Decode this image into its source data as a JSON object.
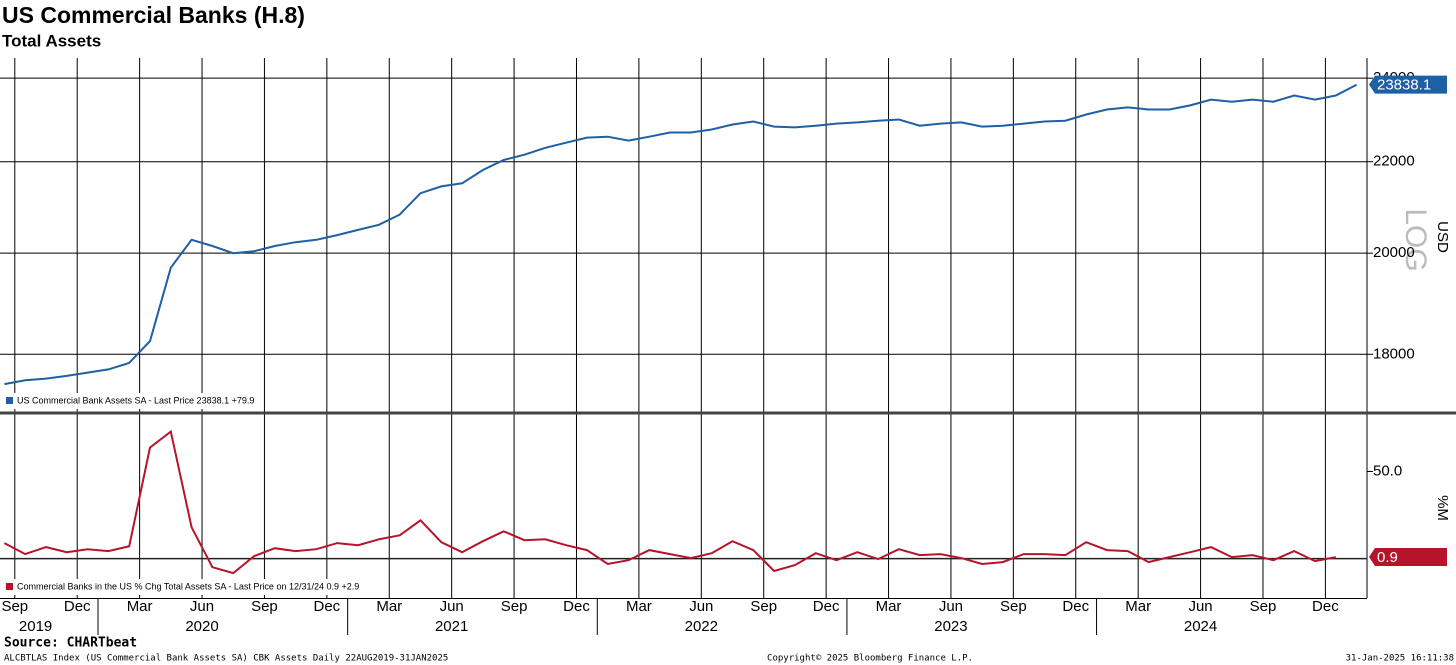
{
  "chart_data": [
    {
      "type": "line",
      "title": "US Commercial Banks (H.8)",
      "subtitle": "Total Assets",
      "log_scale": true,
      "scale_label": "LOG",
      "ylabel": "USD",
      "grid": true,
      "xlim": [
        "2019-08",
        "2025-02"
      ],
      "x": [
        "2019-08",
        "2019-09",
        "2019-10",
        "2019-11",
        "2019-12",
        "2020-01",
        "2020-02",
        "2020-03",
        "2020-04",
        "2020-05",
        "2020-06",
        "2020-07",
        "2020-08",
        "2020-09",
        "2020-10",
        "2020-11",
        "2020-12",
        "2021-01",
        "2021-02",
        "2021-03",
        "2021-04",
        "2021-05",
        "2021-06",
        "2021-07",
        "2021-08",
        "2021-09",
        "2021-10",
        "2021-11",
        "2021-12",
        "2022-01",
        "2022-02",
        "2022-03",
        "2022-04",
        "2022-05",
        "2022-06",
        "2022-07",
        "2022-08",
        "2022-09",
        "2022-10",
        "2022-11",
        "2022-12",
        "2023-01",
        "2023-02",
        "2023-03",
        "2023-04",
        "2023-05",
        "2023-06",
        "2023-07",
        "2023-08",
        "2023-09",
        "2023-10",
        "2023-11",
        "2023-12",
        "2024-01",
        "2024-02",
        "2024-03",
        "2024-04",
        "2024-05",
        "2024-06",
        "2024-07",
        "2024-08",
        "2024-09",
        "2024-10",
        "2024-11",
        "2024-12",
        "2025-01"
      ],
      "ylim": [
        16950,
        24510
      ],
      "yticks": [
        18000,
        20000,
        22000,
        24000
      ],
      "legend": "lower left",
      "series": [
        {
          "name": "US Commercial Bank Assets SA - Last Price 23838.1 +79.9",
          "color": "#1f5fa3",
          "values": [
            17450,
            17520,
            17550,
            17600,
            17660,
            17720,
            17840,
            18250,
            19700,
            20280,
            20150,
            20000,
            20040,
            20150,
            20230,
            20280,
            20380,
            20490,
            20600,
            20820,
            21290,
            21440,
            21510,
            21810,
            22040,
            22160,
            22320,
            22440,
            22560,
            22580,
            22490,
            22580,
            22680,
            22680,
            22750,
            22870,
            22940,
            22820,
            22800,
            22840,
            22890,
            22920,
            22960,
            22990,
            22840,
            22890,
            22920,
            22820,
            22840,
            22890,
            22940,
            22960,
            23110,
            23230,
            23280,
            23230,
            23230,
            23330,
            23470,
            23420,
            23470,
            23420,
            23570,
            23470,
            23570,
            23838.1
          ]
        }
      ]
    },
    {
      "type": "line",
      "ylabel": "%M",
      "xlim": [
        "2019-08",
        "2025-02"
      ],
      "x": [
        "2019-08",
        "2019-09",
        "2019-10",
        "2019-11",
        "2019-12",
        "2020-01",
        "2020-02",
        "2020-03",
        "2020-04",
        "2020-05",
        "2020-06",
        "2020-07",
        "2020-08",
        "2020-09",
        "2020-10",
        "2020-11",
        "2020-12",
        "2021-01",
        "2021-02",
        "2021-03",
        "2021-04",
        "2021-05",
        "2021-06",
        "2021-07",
        "2021-08",
        "2021-09",
        "2021-10",
        "2021-11",
        "2021-12",
        "2022-01",
        "2022-02",
        "2022-03",
        "2022-04",
        "2022-05",
        "2022-06",
        "2022-07",
        "2022-08",
        "2022-09",
        "2022-10",
        "2022-11",
        "2022-12",
        "2023-01",
        "2023-02",
        "2023-03",
        "2023-04",
        "2023-05",
        "2023-06",
        "2023-07",
        "2023-08",
        "2023-09",
        "2023-10",
        "2023-11",
        "2023-12",
        "2024-01",
        "2024-02",
        "2024-03",
        "2024-04",
        "2024-05",
        "2024-06",
        "2024-07",
        "2024-08",
        "2024-09",
        "2024-10",
        "2024-11",
        "2024-12"
      ],
      "ylim": [
        -22.6,
        83
      ],
      "yticks": [
        {
          "value": 50,
          "label": "50.0"
        }
      ],
      "reference_line": 0,
      "legend": "lower left",
      "series": [
        {
          "name": "Commercial Banks in the US % Chg Total Assets SA - Last Price on 12/31/24 0.9  +2.9",
          "color": "#b5142b",
          "values": [
            8.9,
            2.6,
            6.6,
            3.7,
            5.4,
            4.3,
            7.1,
            63.7,
            72.9,
            18.0,
            -4.9,
            -8.3,
            1.4,
            6.0,
            4.3,
            5.4,
            8.9,
            7.7,
            11.1,
            13.4,
            22.0,
            9.4,
            3.7,
            10.0,
            15.7,
            10.6,
            11.1,
            7.7,
            4.9,
            -3.1,
            -0.9,
            4.9,
            2.6,
            0.3,
            3.1,
            10.0,
            4.9,
            -7.1,
            -3.7,
            3.1,
            -0.9,
            3.7,
            -0.3,
            5.4,
            2.0,
            2.6,
            0.3,
            -3.1,
            -2.0,
            2.6,
            2.6,
            2.0,
            9.4,
            4.9,
            4.3,
            -2.0,
            0.9,
            3.7,
            6.6,
            0.9,
            2.0,
            -0.9,
            4.3,
            -1.4,
            0.9
          ]
        }
      ],
      "xticks": [
        {
          "value": "2019-09",
          "label": "Sep"
        },
        {
          "value": "2019-12",
          "label": "Dec"
        },
        {
          "value": "2020-03",
          "label": "Mar"
        },
        {
          "value": "2020-06",
          "label": "Jun"
        },
        {
          "value": "2020-09",
          "label": "Sep"
        },
        {
          "value": "2020-12",
          "label": "Dec"
        },
        {
          "value": "2021-03",
          "label": "Mar"
        },
        {
          "value": "2021-06",
          "label": "Jun"
        },
        {
          "value": "2021-09",
          "label": "Sep"
        },
        {
          "value": "2021-12",
          "label": "Dec"
        },
        {
          "value": "2022-03",
          "label": "Mar"
        },
        {
          "value": "2022-06",
          "label": "Jun"
        },
        {
          "value": "2022-09",
          "label": "Sep"
        },
        {
          "value": "2022-12",
          "label": "Dec"
        },
        {
          "value": "2023-03",
          "label": "Mar"
        },
        {
          "value": "2023-06",
          "label": "Jun"
        },
        {
          "value": "2023-09",
          "label": "Sep"
        },
        {
          "value": "2023-12",
          "label": "Dec"
        },
        {
          "value": "2024-03",
          "label": "Mar"
        },
        {
          "value": "2024-06",
          "label": "Jun"
        },
        {
          "value": "2024-09",
          "label": "Sep"
        },
        {
          "value": "2024-12",
          "label": "Dec"
        }
      ],
      "year_labels": [
        {
          "value": "2019-10",
          "label": "2019"
        },
        {
          "value": "2020-06",
          "label": "2020"
        },
        {
          "value": "2021-06",
          "label": "2021"
        },
        {
          "value": "2022-06",
          "label": "2022"
        },
        {
          "value": "2023-06",
          "label": "2023"
        },
        {
          "value": "2024-06",
          "label": "2024"
        }
      ]
    }
  ],
  "footer": {
    "source": "Source: CHARTbeat",
    "left": "ALCBTLAS Index (US Commercial Bank Assets SA) CBK Assets  Daily 22AUG2019-31JAN2025",
    "center": "Copyright© 2025 Bloomberg Finance L.P.",
    "right": "31-Jan-2025 16:11:38"
  }
}
